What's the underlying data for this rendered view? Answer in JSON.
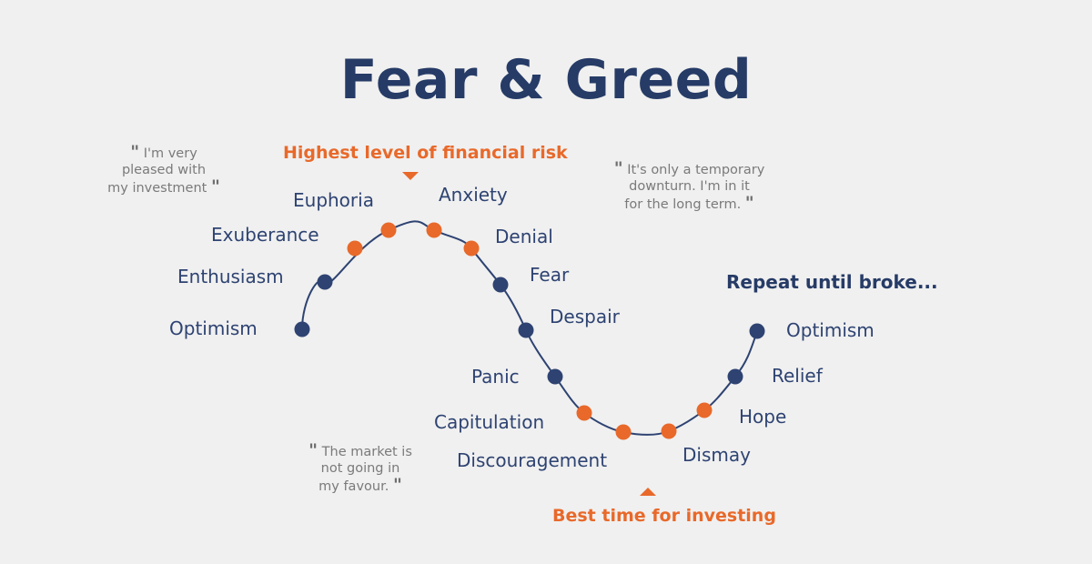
{
  "title": "Fear & Greed",
  "colors": {
    "navy": "#2e4372",
    "orange": "#e8692a",
    "gray": "#7a7a7a",
    "background": "#f0f0f0"
  },
  "callouts": {
    "highest_risk": "Highest level of financial risk",
    "best_time": "Best time for investing",
    "repeat": "Repeat until broke..."
  },
  "stages": [
    {
      "label": "Optimism",
      "tone": "navy"
    },
    {
      "label": "Enthusiasm",
      "tone": "navy"
    },
    {
      "label": "Exuberance",
      "tone": "orange"
    },
    {
      "label": "Euphoria",
      "tone": "orange"
    },
    {
      "label": "Anxiety",
      "tone": "orange"
    },
    {
      "label": "Denial",
      "tone": "orange"
    },
    {
      "label": "Fear",
      "tone": "navy"
    },
    {
      "label": "Despair",
      "tone": "navy"
    },
    {
      "label": "Panic",
      "tone": "navy"
    },
    {
      "label": "Capitulation",
      "tone": "orange"
    },
    {
      "label": "Discouragement",
      "tone": "orange"
    },
    {
      "label": "Dismay",
      "tone": "orange"
    },
    {
      "label": "Hope",
      "tone": "orange"
    },
    {
      "label": "Relief",
      "tone": "navy"
    },
    {
      "label": "Optimism",
      "tone": "navy"
    }
  ],
  "quotes": {
    "pleased": [
      "I'm very",
      "pleased with",
      "my investment"
    ],
    "temporary": [
      "It's only a temporary",
      "downturn. I'm in it",
      "for the long term."
    ],
    "market": [
      "The market is",
      "not going in",
      "my favour."
    ]
  }
}
